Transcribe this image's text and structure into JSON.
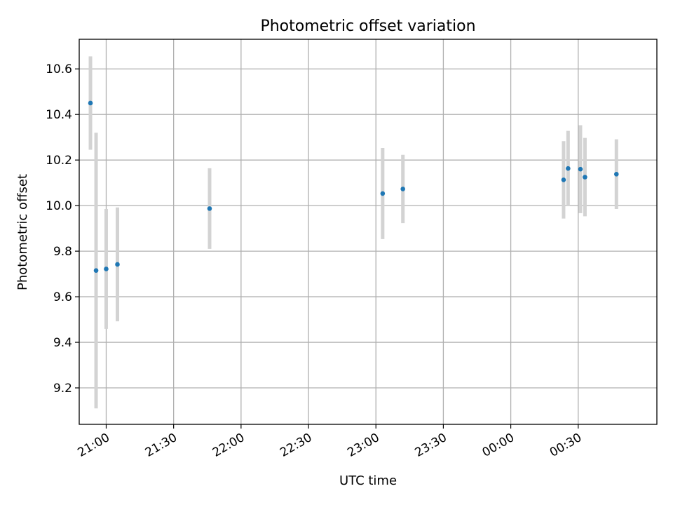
{
  "chart_data": {
    "type": "scatter",
    "title": "Photometric offset variation",
    "xlabel": "UTC time",
    "ylabel": "Photometric offset",
    "x_tick_labels": [
      "21:00",
      "21:30",
      "22:00",
      "22:30",
      "23:00",
      "23:30",
      "00:00",
      "00:30"
    ],
    "y_tick_labels": [
      "9.2",
      "9.4",
      "9.6",
      "9.8",
      "10.0",
      "10.2",
      "10.4",
      "10.6"
    ],
    "xlim": [
      "2000-01-01T20:48:00",
      "2000-01-02T01:05:00"
    ],
    "ylim": [
      9.04,
      10.73
    ],
    "grid": true,
    "colors": {
      "points": "#1f77b4",
      "error_bars": "#d3d3d3",
      "grid": "#b0b0b0"
    },
    "series": [
      {
        "points": [
          {
            "x": "2000-01-01T20:53:00",
            "y": 10.45,
            "err": 0.205
          },
          {
            "x": "2000-01-01T20:55:30",
            "y": 9.715,
            "err": 0.605
          },
          {
            "x": "2000-01-01T21:00:00",
            "y": 9.722,
            "err": 0.263
          },
          {
            "x": "2000-01-01T21:05:00",
            "y": 9.742,
            "err": 0.25
          },
          {
            "x": "2000-01-01T21:46:00",
            "y": 9.987,
            "err": 0.177
          },
          {
            "x": "2000-01-01T23:03:00",
            "y": 10.053,
            "err": 0.2
          },
          {
            "x": "2000-01-01T23:12:00",
            "y": 10.073,
            "err": 0.15
          },
          {
            "x": "2000-01-02T00:23:30",
            "y": 10.113,
            "err": 0.17
          },
          {
            "x": "2000-01-02T00:25:30",
            "y": 10.163,
            "err": 0.165
          },
          {
            "x": "2000-01-02T00:31:00",
            "y": 10.16,
            "err": 0.193
          },
          {
            "x": "2000-01-02T00:33:00",
            "y": 10.125,
            "err": 0.172
          },
          {
            "x": "2000-01-02T00:47:00",
            "y": 10.138,
            "err": 0.153
          }
        ]
      }
    ]
  }
}
